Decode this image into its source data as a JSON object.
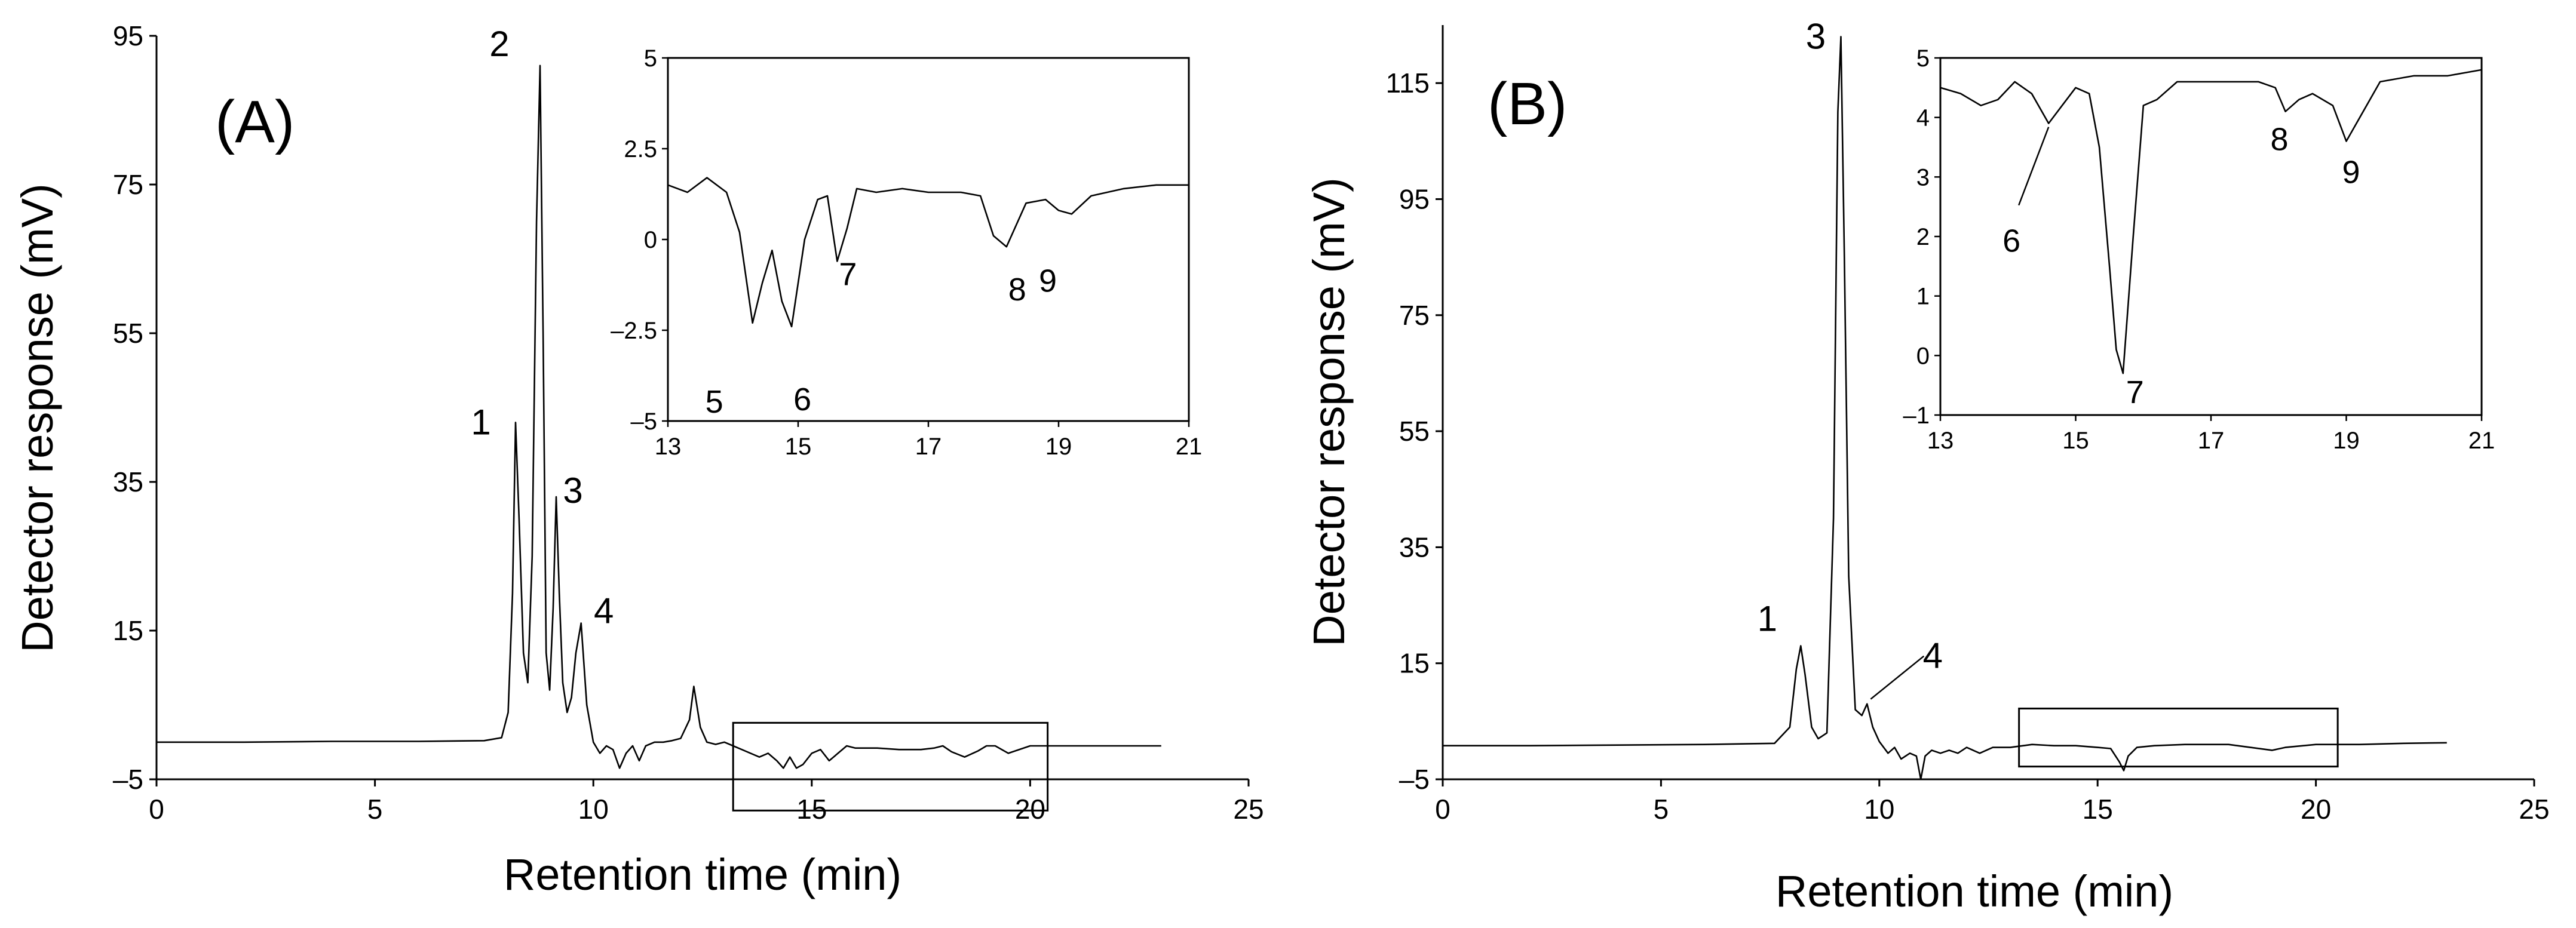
{
  "chart_data": [
    {
      "type": "line",
      "panel_label": "(A)",
      "xlabel": "Retention time (min)",
      "ylabel": "Detector response (mV)",
      "xlim": [
        0,
        25
      ],
      "ylim": [
        -5,
        95
      ],
      "xticks": [
        0,
        5,
        10,
        15,
        20,
        25
      ],
      "yticks": [
        -5,
        15,
        35,
        55,
        75,
        95
      ],
      "ytick_labels": [
        "–5",
        "15",
        "35",
        "55",
        "75",
        "95"
      ],
      "grid": false,
      "series": [
        {
          "x": [
            0,
            2,
            4,
            6,
            7.5,
            7.9,
            8.05,
            8.15,
            8.22,
            8.3,
            8.4,
            8.5,
            8.6,
            8.7,
            8.78,
            8.85,
            8.92,
            9.0,
            9.08,
            9.15,
            9.22,
            9.3,
            9.4,
            9.5,
            9.6,
            9.72,
            9.85,
            10.0,
            10.15,
            10.3,
            10.45,
            10.6,
            10.75,
            10.9,
            11.05,
            11.2,
            11.4,
            11.6,
            11.8,
            12.0,
            12.2,
            12.3,
            12.45,
            12.6,
            12.8,
            13.0,
            13.2,
            13.4,
            13.6,
            13.8,
            14.0,
            14.2,
            14.35,
            14.5,
            14.65,
            14.8,
            15.0,
            15.2,
            15.4,
            15.6,
            15.8,
            16.0,
            16.5,
            17.0,
            17.5,
            17.8,
            18.0,
            18.2,
            18.5,
            18.8,
            19.0,
            19.2,
            19.5,
            20.0,
            20.5,
            21,
            22,
            23
          ],
          "y": [
            0,
            0,
            0.1,
            0.1,
            0.2,
            0.6,
            4,
            20,
            43,
            30,
            12,
            8,
            25,
            70,
            91,
            55,
            12,
            7,
            18,
            33,
            20,
            8,
            4,
            6,
            12,
            16,
            5,
            0,
            -1.5,
            -0.5,
            -1,
            -3.5,
            -1.5,
            -0.5,
            -2.5,
            -0.5,
            0,
            0,
            0.2,
            0.5,
            3,
            7.5,
            2,
            0,
            -0.3,
            0,
            -0.5,
            -1,
            -1.5,
            -2,
            -1.5,
            -2.5,
            -3.5,
            -2,
            -3.5,
            -3,
            -1.5,
            -1,
            -2.5,
            -1.5,
            -0.5,
            -0.8,
            -0.8,
            -1,
            -1,
            -0.8,
            -0.5,
            -1.3,
            -2,
            -1.2,
            -0.5,
            -0.5,
            -1.5,
            -0.5,
            -0.5,
            -0.5,
            -0.5,
            -0.5
          ]
        }
      ],
      "peak_labels": [
        {
          "text": "1",
          "x": 8.22,
          "y": 43
        },
        {
          "text": "2",
          "x": 8.78,
          "y": 91
        },
        {
          "text": "3",
          "x": 9.15,
          "y": 33
        },
        {
          "text": "4",
          "x": 9.72,
          "y": 16
        }
      ],
      "zoom_box": {
        "x": [
          13.2,
          20.4
        ],
        "y": [
          -9.2,
          2.6
        ]
      },
      "inset": {
        "xlim": [
          13,
          21
        ],
        "ylim": [
          -5,
          5
        ],
        "xticks": [
          13,
          15,
          17,
          19,
          21
        ],
        "yticks": [
          -5,
          -2.5,
          0,
          2.5,
          5
        ],
        "x": [
          13,
          13.3,
          13.6,
          13.9,
          14.1,
          14.3,
          14.45,
          14.6,
          14.75,
          14.9,
          15.1,
          15.3,
          15.45,
          15.6,
          15.75,
          15.9,
          16.2,
          16.6,
          17.0,
          17.5,
          17.8,
          18.0,
          18.2,
          18.5,
          18.8,
          19.0,
          19.2,
          19.5,
          20.0,
          20.5,
          21
        ],
        "y": [
          1.5,
          1.3,
          1.7,
          1.3,
          0.2,
          -2.3,
          -1.2,
          -0.3,
          -1.7,
          -2.4,
          0,
          1.1,
          1.2,
          -0.6,
          0.3,
          1.4,
          1.3,
          1.4,
          1.3,
          1.3,
          1.2,
          0.1,
          -0.2,
          1.0,
          1.1,
          0.8,
          0.7,
          1.2,
          1.4,
          1.5,
          1.5
        ],
        "peak_labels": [
          {
            "text": "5",
            "x": 14.3,
            "y": -2.3
          },
          {
            "text": "6",
            "x": 14.9,
            "y": -2.4
          },
          {
            "text": "7",
            "x": 15.6,
            "y": -0.6
          },
          {
            "text": "8",
            "x": 18.2,
            "y": -0.2
          },
          {
            "text": "9",
            "x": 19.0,
            "y": 0.7
          }
        ]
      }
    },
    {
      "type": "line",
      "panel_label": "(B)",
      "xlabel": "Retention time (min)",
      "ylabel": "Detector response (mV)",
      "xlim": [
        0,
        25
      ],
      "ylim": [
        -5,
        125
      ],
      "xticks": [
        0,
        5,
        10,
        15,
        20,
        25
      ],
      "yticks": [
        -5,
        15,
        35,
        55,
        75,
        95,
        115
      ],
      "ytick_labels": [
        "–5",
        "15",
        "35",
        "55",
        "75",
        "95",
        "115"
      ],
      "grid": false,
      "series": [
        {
          "x": [
            0,
            2,
            4,
            6,
            7.6,
            7.95,
            8.1,
            8.2,
            8.3,
            8.45,
            8.6,
            8.8,
            8.95,
            9.05,
            9.12,
            9.2,
            9.3,
            9.45,
            9.6,
            9.72,
            9.85,
            10.0,
            10.2,
            10.35,
            10.5,
            10.7,
            10.85,
            10.95,
            11.05,
            11.2,
            11.4,
            11.6,
            11.8,
            12.0,
            12.3,
            12.6,
            13.0,
            13.5,
            14.0,
            14.5,
            15.0,
            15.3,
            15.5,
            15.6,
            15.7,
            15.9,
            16.3,
            17.0,
            18.0,
            18.5,
            19.0,
            19.3,
            20.0,
            21,
            22,
            23
          ],
          "y": [
            0.8,
            0.8,
            0.9,
            1.0,
            1.2,
            4,
            14,
            18,
            13,
            4,
            2,
            3,
            40,
            110,
            123,
            85,
            30,
            7,
            6,
            8,
            4,
            1.5,
            -0.5,
            0.5,
            -1.5,
            -0.5,
            -1,
            -5,
            -1,
            0,
            -0.5,
            0,
            -0.5,
            0.5,
            -0.5,
            0.5,
            0.5,
            1,
            0.8,
            0.8,
            0.5,
            0.3,
            -2,
            -3.5,
            -1,
            0.5,
            0.8,
            1.0,
            1.0,
            0.5,
            0,
            0.5,
            1.0,
            1.0,
            1.2,
            1.3
          ]
        }
      ],
      "peak_labels": [
        {
          "text": "1",
          "x": 8.2,
          "y": 18
        },
        {
          "text": "3",
          "x": 9.12,
          "y": 123
        },
        {
          "text": "4",
          "x": 9.72,
          "y": 8
        }
      ],
      "zoom_box": {
        "x": [
          13.2,
          20.5
        ],
        "y": [
          -2.8,
          7.2
        ]
      },
      "inset": {
        "xlim": [
          13,
          21
        ],
        "ylim": [
          -1,
          5
        ],
        "xticks": [
          13,
          15,
          17,
          19,
          21
        ],
        "yticks": [
          -1,
          0,
          1,
          2,
          3,
          4,
          5
        ],
        "x": [
          13,
          13.3,
          13.6,
          13.85,
          14.1,
          14.35,
          14.6,
          14.8,
          15.0,
          15.2,
          15.35,
          15.5,
          15.6,
          15.7,
          15.85,
          16.0,
          16.2,
          16.5,
          17.0,
          17.5,
          17.7,
          17.95,
          18.1,
          18.3,
          18.5,
          18.8,
          19.0,
          19.2,
          19.5,
          20.0,
          20.5,
          21
        ],
        "y": [
          4.5,
          4.4,
          4.2,
          4.3,
          4.6,
          4.4,
          3.9,
          4.2,
          4.5,
          4.4,
          3.5,
          1.5,
          0.1,
          -0.3,
          2.0,
          4.2,
          4.3,
          4.6,
          4.6,
          4.6,
          4.6,
          4.5,
          4.1,
          4.3,
          4.4,
          4.2,
          3.6,
          4.0,
          4.6,
          4.7,
          4.7,
          4.8
        ],
        "peak_labels": [
          {
            "text": "6",
            "x": 14.6,
            "y": 3.9
          },
          {
            "text": "7",
            "x": 15.7,
            "y": -0.3
          },
          {
            "text": "8",
            "x": 18.1,
            "y": 4.1
          },
          {
            "text": "9",
            "x": 19.0,
            "y": 3.6
          }
        ]
      }
    }
  ]
}
